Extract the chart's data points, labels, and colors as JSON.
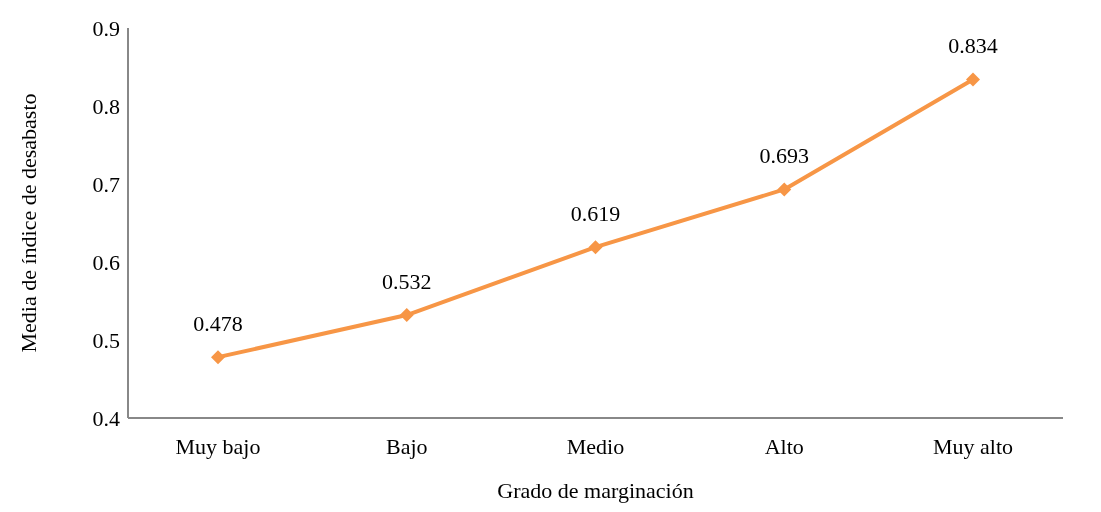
{
  "chart_data": {
    "type": "line",
    "xlabel": "Grado de marginación",
    "ylabel": "Media de índice de desabasto",
    "categories": [
      "Muy bajo",
      "Bajo",
      "Medio",
      "Alto",
      "Muy alto"
    ],
    "series": [
      {
        "color": "#f79646",
        "values": [
          0.478,
          0.532,
          0.619,
          0.693,
          0.834
        ]
      }
    ],
    "ylim": [
      0.4,
      0.9
    ],
    "yticks": [
      0.4,
      0.5,
      0.6,
      0.7,
      0.8,
      0.9
    ],
    "data_labels": true,
    "marker": "diamond",
    "line_style": "solid"
  }
}
